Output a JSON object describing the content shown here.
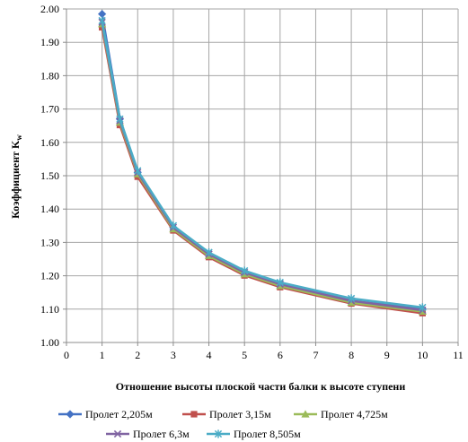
{
  "chart_data": {
    "type": "line",
    "title": "",
    "xlabel": "Отношение высоты плоской части балки к высоте ступени",
    "ylabel_main": "Коэффициент K",
    "ylabel_sub": "w",
    "xlim": [
      0,
      11
    ],
    "ylim": [
      1.0,
      2.0
    ],
    "x_ticks": [
      "0",
      "1",
      "2",
      "3",
      "4",
      "5",
      "6",
      "7",
      "8",
      "9",
      "10",
      "11"
    ],
    "y_ticks": [
      "1.00",
      "1.10",
      "1.20",
      "1.30",
      "1.40",
      "1.50",
      "1.60",
      "1.70",
      "1.80",
      "1.90",
      "2.00"
    ],
    "grid": true,
    "legend_position": "bottom",
    "x": [
      1,
      1.5,
      2,
      3,
      4,
      5,
      6,
      8,
      10
    ],
    "series": [
      {
        "name": "Пролет 2,205м",
        "color": "#4472C4",
        "marker": "diamond",
        "values": [
          1.985,
          1.67,
          1.51,
          1.345,
          1.265,
          1.21,
          1.175,
          1.125,
          1.1
        ]
      },
      {
        "name": "Пролет 3,15м",
        "color": "#C0504D",
        "marker": "square",
        "values": [
          1.945,
          1.652,
          1.497,
          1.336,
          1.256,
          1.201,
          1.166,
          1.117,
          1.088
        ]
      },
      {
        "name": "Пролет 4,725м",
        "color": "#9BBB59",
        "marker": "triangle",
        "values": [
          1.955,
          1.66,
          1.505,
          1.34,
          1.26,
          1.205,
          1.17,
          1.12,
          1.093
        ]
      },
      {
        "name": "Пролет 6,3м",
        "color": "#8064A2",
        "marker": "x",
        "values": [
          1.96,
          1.665,
          1.51,
          1.345,
          1.265,
          1.21,
          1.175,
          1.125,
          1.097
        ]
      },
      {
        "name": "Пролет 8,505м",
        "color": "#4BACC6",
        "marker": "star",
        "values": [
          1.965,
          1.67,
          1.515,
          1.35,
          1.27,
          1.215,
          1.18,
          1.132,
          1.105
        ]
      }
    ]
  }
}
